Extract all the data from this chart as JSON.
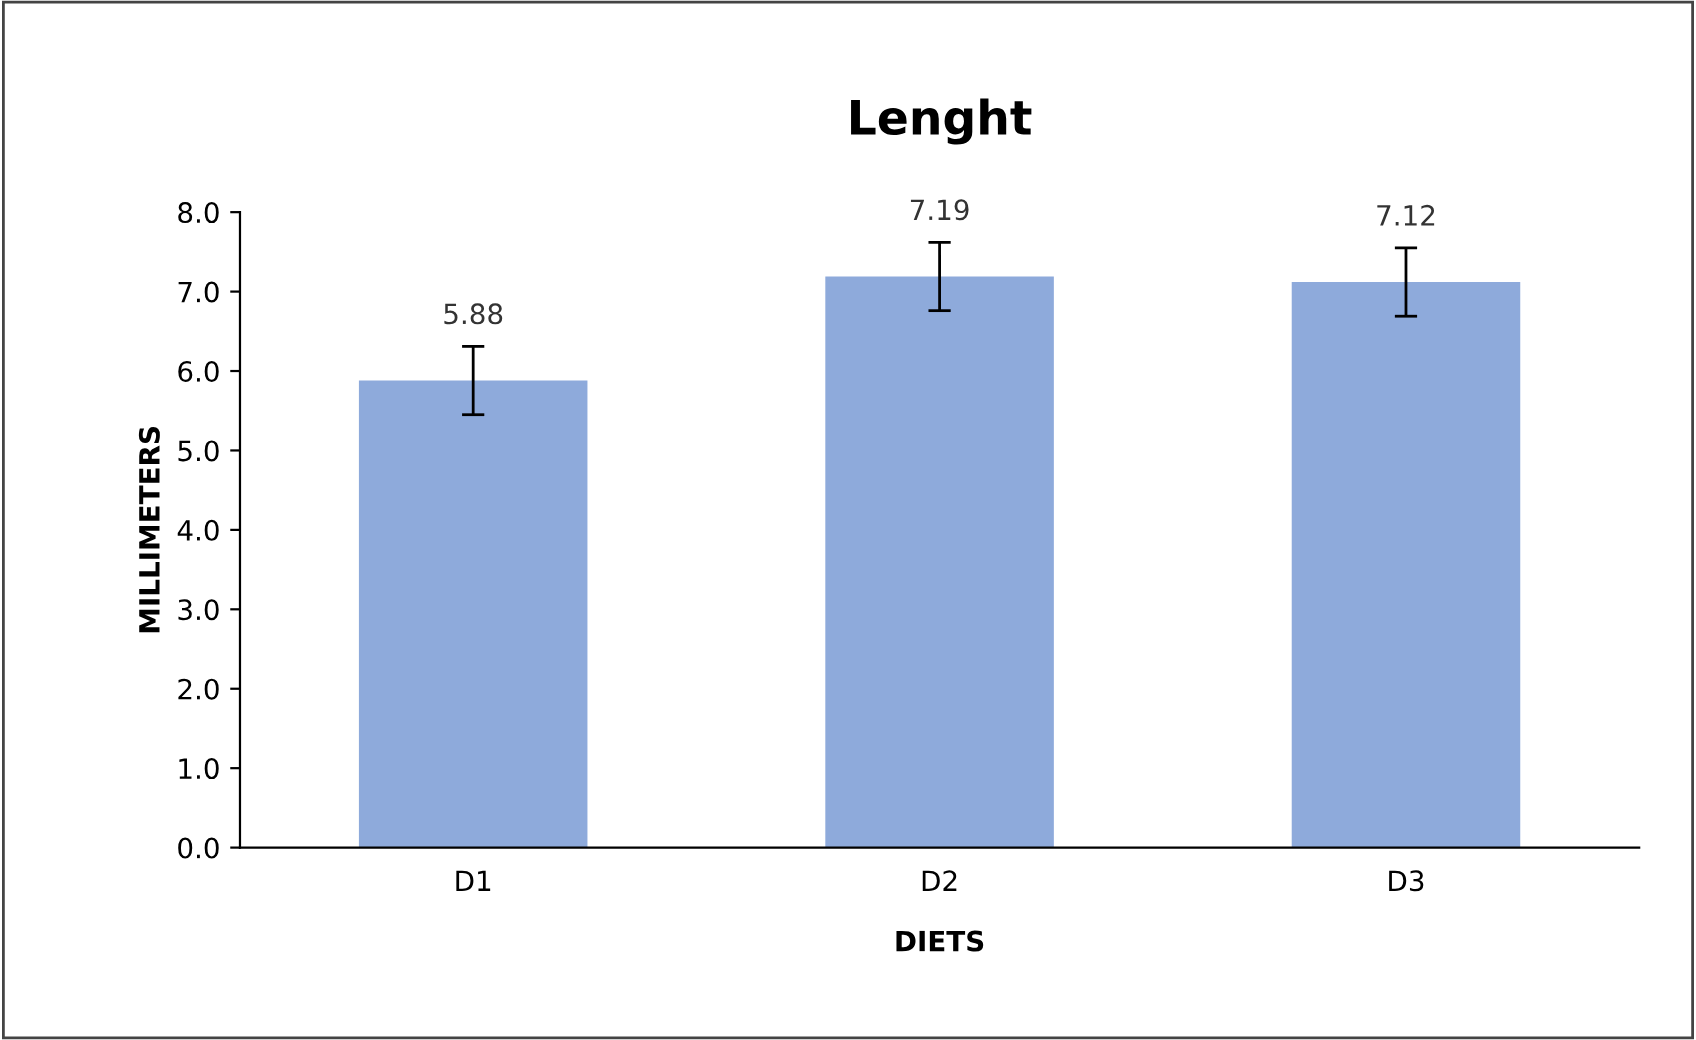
{
  "chart_data": {
    "type": "bar",
    "title": "Lenght",
    "xlabel": "DIETS",
    "ylabel": "MILLIMETERS",
    "categories": [
      "D1",
      "D2",
      "D3"
    ],
    "values": [
      5.88,
      7.19,
      7.12
    ],
    "errors": [
      0.43,
      0.43,
      0.43
    ],
    "color": "#8eaadb",
    "data_labels": true,
    "ylim": [
      0,
      8
    ],
    "yticks": [
      {
        "value": 0,
        "label": "0.0"
      },
      {
        "value": 1,
        "label": "1.0"
      },
      {
        "value": 2,
        "label": "2.0"
      },
      {
        "value": 3,
        "label": "3.0"
      },
      {
        "value": 4,
        "label": "4.0"
      },
      {
        "value": 5,
        "label": "5.0"
      },
      {
        "value": 6,
        "label": "6.0"
      },
      {
        "value": 7,
        "label": "7.0"
      },
      {
        "value": 8,
        "label": "8.0"
      }
    ],
    "grid": false,
    "legend": false
  }
}
